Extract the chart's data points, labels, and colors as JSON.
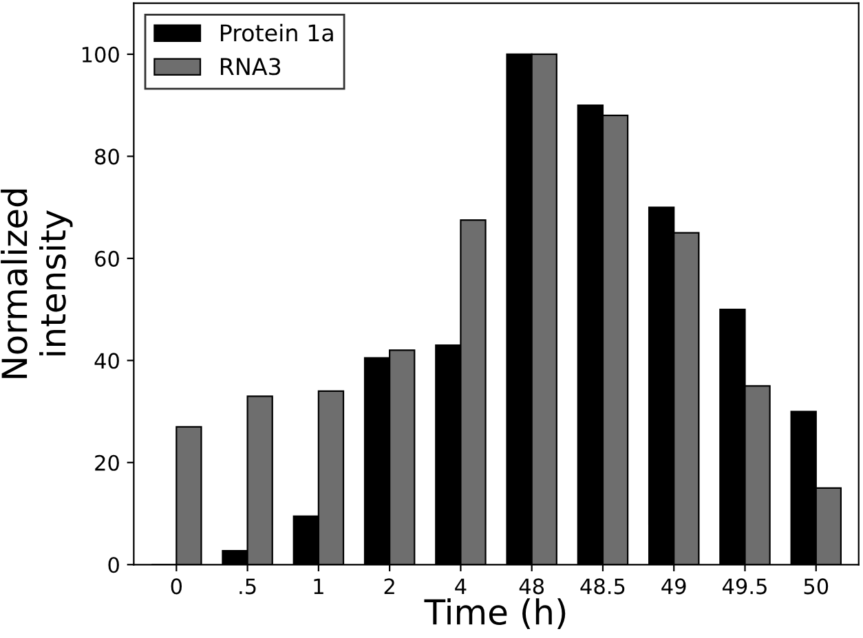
{
  "chart_data": {
    "type": "bar",
    "xlabel": "Time (h)",
    "ylabel": "Normalized\nintensity",
    "categories": [
      "0",
      ".5",
      "1",
      "2",
      "4",
      "48",
      "48.5",
      "49",
      "49.5",
      "50"
    ],
    "series": [
      {
        "name": "Protein 1a",
        "color": "#000000",
        "values": [
          0,
          2.7,
          9.5,
          40.5,
          43,
          100,
          90,
          70,
          50,
          30
        ]
      },
      {
        "name": "RNA3",
        "color": "#6e6e6e",
        "values": [
          27,
          33,
          34,
          42,
          67.5,
          100,
          88,
          65,
          35,
          15
        ]
      }
    ],
    "ylim": [
      0,
      110
    ],
    "yticks": [
      0,
      20,
      40,
      60,
      80,
      100
    ],
    "legend": "top left",
    "grid": false
  }
}
